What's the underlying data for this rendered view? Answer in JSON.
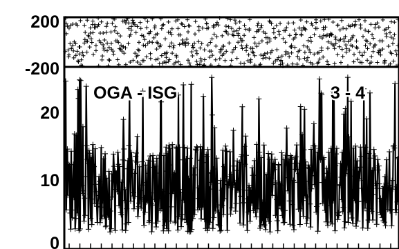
{
  "chart_data": [
    {
      "type": "scatter",
      "marker": "plus",
      "color": "#000000",
      "ylim": [
        -200,
        200
      ],
      "y_tick_labels": [
        "200",
        "-200"
      ],
      "y_ticks": [
        200,
        -200
      ],
      "grid": false,
      "series": [
        {
          "x_count": 600,
          "y_range_observed": [
            -200,
            200
          ],
          "description_values": "dense phase scatter filling the full range between -200 and 200"
        }
      ]
    },
    {
      "type": "scatter",
      "marker": "plus",
      "color": "#000000",
      "ylim": [
        0,
        26
      ],
      "y_tick_labels": [
        "20",
        "10",
        "0"
      ],
      "y_ticks": [
        20,
        10,
        0
      ],
      "grid": false,
      "annotations": [
        "OGA - ISG",
        "3 - 4"
      ],
      "series": [
        {
          "x_count": 600,
          "typical_range": [
            2,
            16
          ],
          "peak_values": [
            22,
            23,
            24,
            25
          ]
        }
      ]
    }
  ],
  "labels": {
    "top_y_max": "200",
    "top_y_min": "-200",
    "bottom_y_20": "20",
    "bottom_y_10": "10",
    "bottom_y_0": "0",
    "station_pair": "OGA - ISG",
    "baseline": "3 - 4"
  }
}
